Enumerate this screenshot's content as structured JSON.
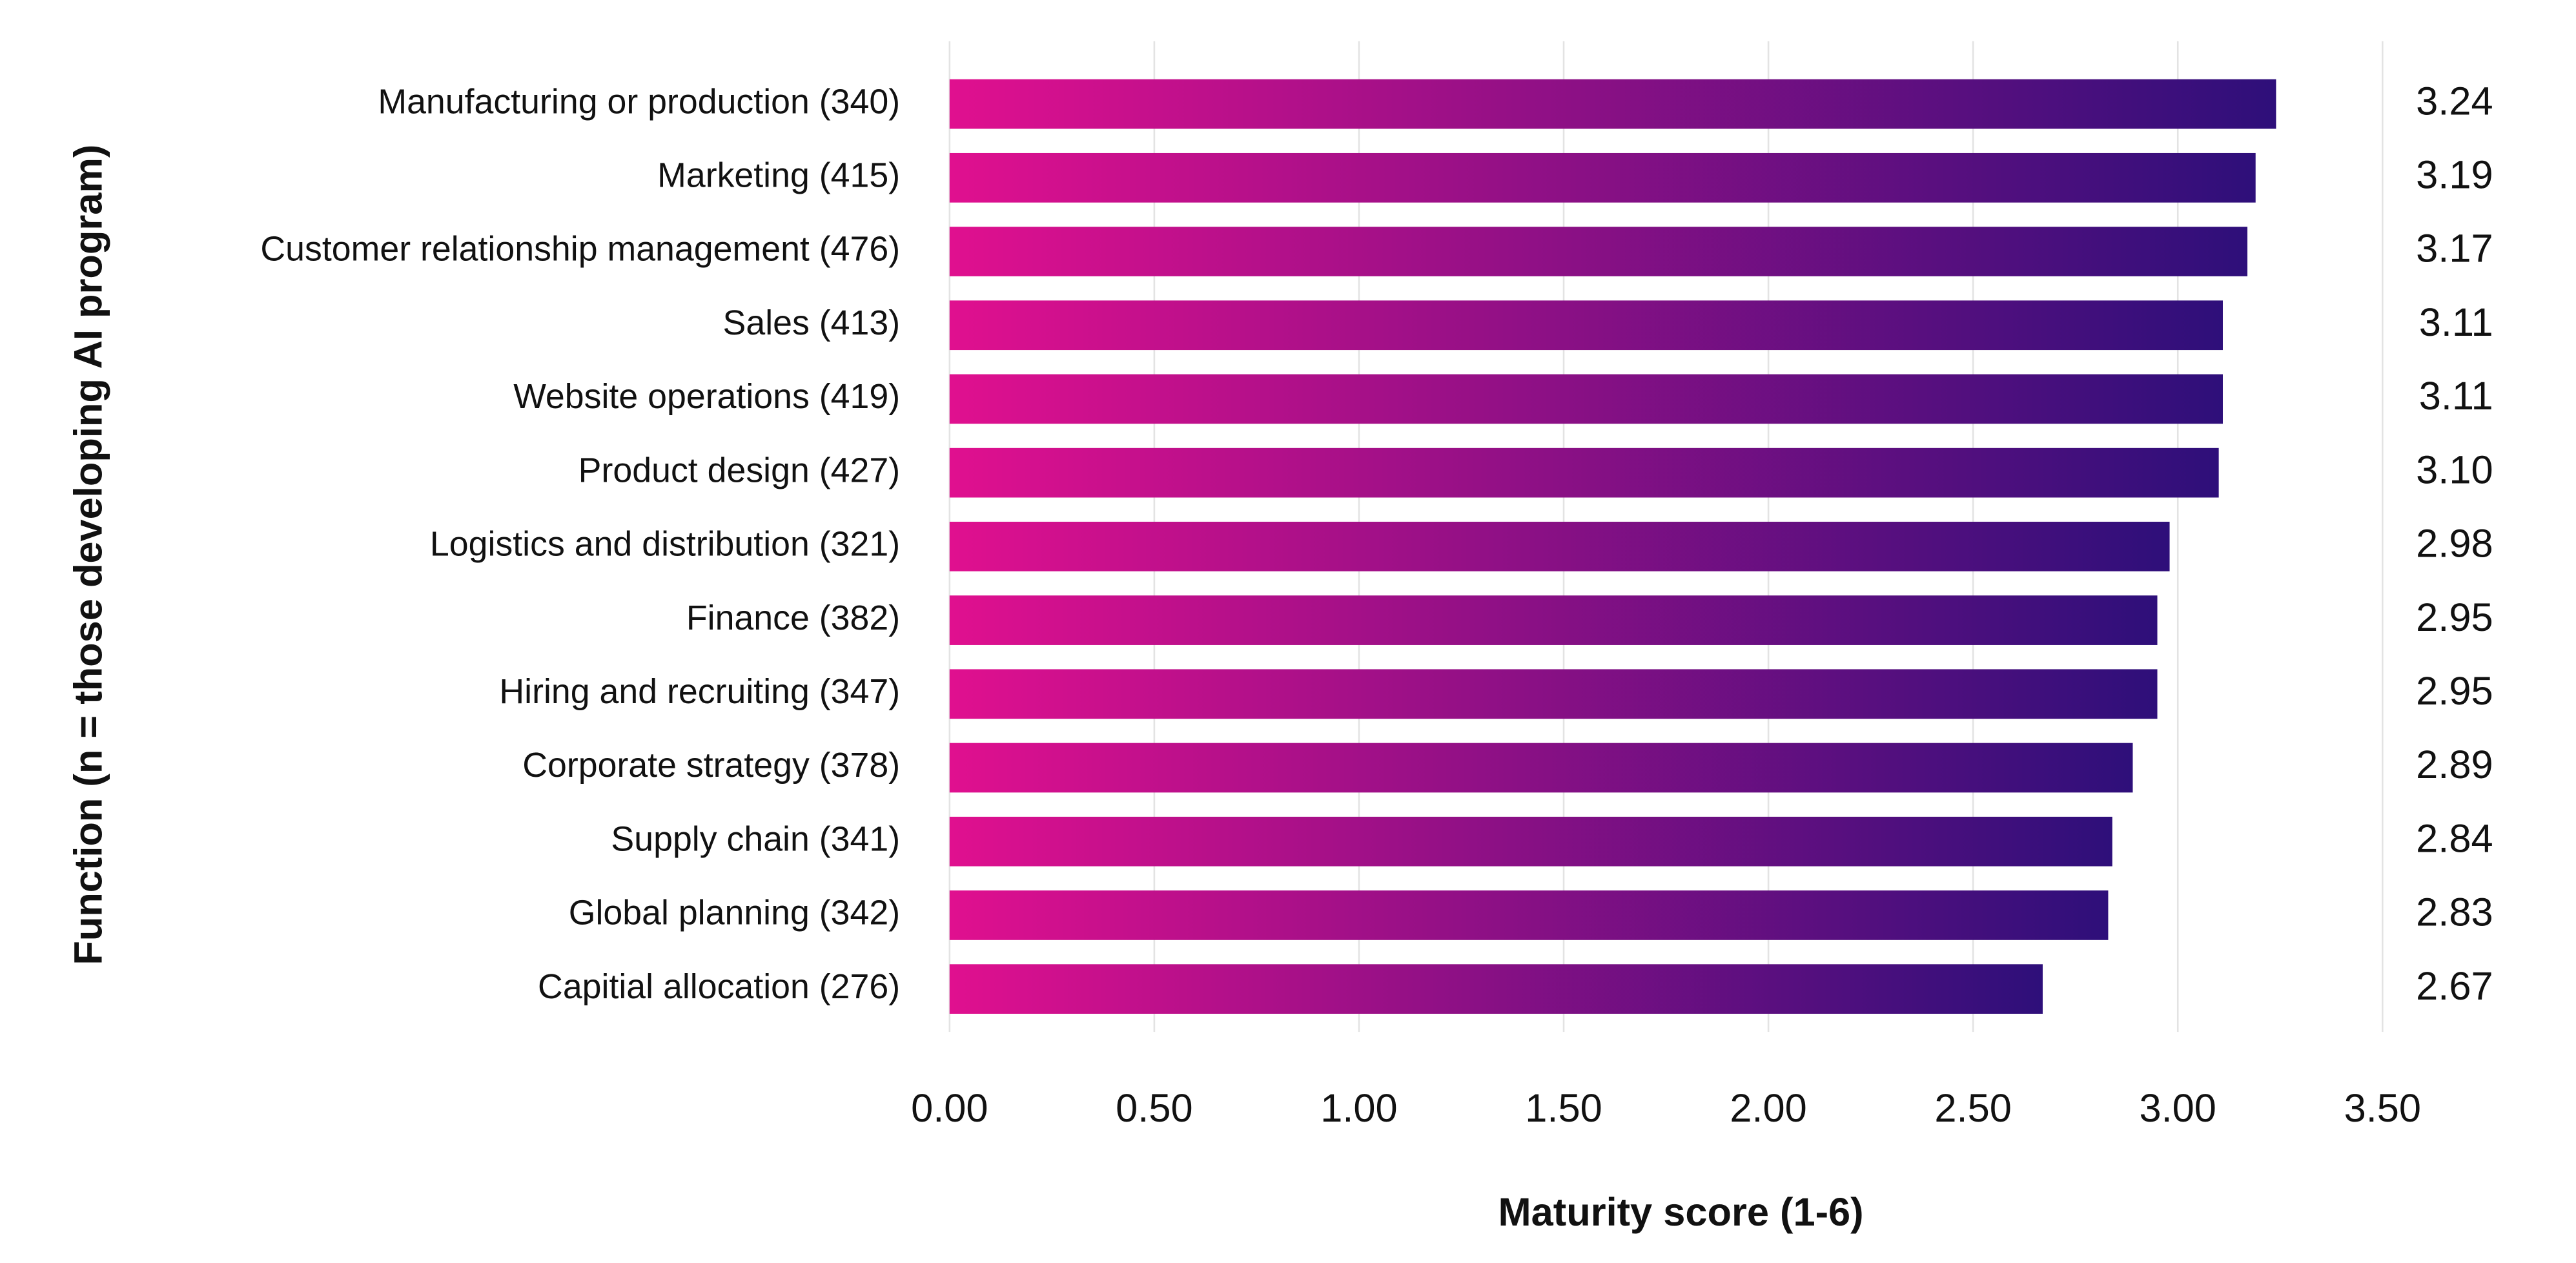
{
  "chart_data": {
    "type": "hbar",
    "xlabel": "Maturity score (1-6)",
    "ylabel": "Function (n = those developing AI program)",
    "categories": [
      "Manufacturing or production (340)",
      "Marketing (415)",
      "Customer relationship management (476)",
      "Sales (413)",
      "Website operations (419)",
      "Product design (427)",
      "Logistics and distribution (321)",
      "Finance (382)",
      "Hiring and recruiting (347)",
      "Corporate strategy (378)",
      "Supply chain (341)",
      "Global planning (342)",
      "Capitial allocation (276)"
    ],
    "values": [
      3.24,
      3.19,
      3.17,
      3.11,
      3.11,
      3.1,
      2.98,
      2.95,
      2.95,
      2.89,
      2.84,
      2.83,
      2.67
    ],
    "value_labels": [
      "3.24",
      "3.19",
      "3.17",
      "3.11",
      "3.11",
      "3.10",
      "2.98",
      "2.95",
      "2.95",
      "2.89",
      "2.84",
      "2.83",
      "2.67"
    ],
    "color": [
      "#e0108f",
      "#2e0f7a"
    ],
    "xlim": [
      0,
      3.5
    ],
    "xticks": [
      {
        "value": 0,
        "label": "0.00"
      },
      {
        "value": 0.5,
        "label": "0.50"
      },
      {
        "value": 1,
        "label": "1.00"
      },
      {
        "value": 1.5,
        "label": "1.50"
      },
      {
        "value": 2,
        "label": "2.00"
      },
      {
        "value": 2.5,
        "label": "2.50"
      },
      {
        "value": 3,
        "label": "3.00"
      },
      {
        "value": 3.5,
        "label": "3.50"
      }
    ],
    "grid": true
  }
}
